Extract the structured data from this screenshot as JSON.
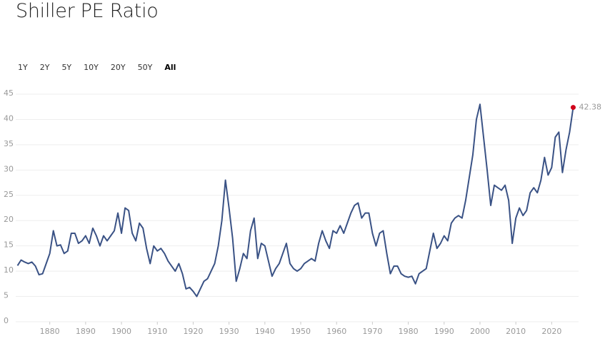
{
  "chart_data": {
    "type": "line",
    "title": "Shiller PE Ratio",
    "range_buttons": [
      "1Y",
      "2Y",
      "5Y",
      "10Y",
      "20Y",
      "50Y",
      "All"
    ],
    "active_range": 6,
    "xlim": [
      1870.5,
      2027.5
    ],
    "xticks": [
      1880,
      1890,
      1900,
      1910,
      1920,
      1930,
      1940,
      1950,
      1960,
      1970,
      1980,
      1990,
      2000,
      2010,
      2020
    ],
    "ylim": [
      0,
      45
    ],
    "yticks": [
      0,
      5,
      10,
      15,
      20,
      25,
      30,
      35,
      40,
      45
    ],
    "grid": true,
    "x": [
      1871,
      1872,
      1873,
      1874,
      1875,
      1876,
      1877,
      1878,
      1879,
      1880,
      1881,
      1882,
      1883,
      1884,
      1885,
      1886,
      1887,
      1888,
      1889,
      1890,
      1891,
      1892,
      1893,
      1894,
      1895,
      1896,
      1897,
      1898,
      1899,
      1900,
      1901,
      1902,
      1903,
      1904,
      1905,
      1906,
      1907,
      1908,
      1909,
      1910,
      1911,
      1912,
      1913,
      1914,
      1915,
      1916,
      1917,
      1918,
      1919,
      1920,
      1921,
      1922,
      1923,
      1924,
      1925,
      1926,
      1927,
      1928,
      1929,
      1930,
      1931,
      1932,
      1933,
      1934,
      1935,
      1936,
      1937,
      1938,
      1939,
      1940,
      1941,
      1942,
      1943,
      1944,
      1945,
      1946,
      1947,
      1948,
      1949,
      1950,
      1951,
      1952,
      1953,
      1954,
      1955,
      1956,
      1957,
      1958,
      1959,
      1960,
      1961,
      1962,
      1963,
      1964,
      1965,
      1966,
      1967,
      1968,
      1969,
      1970,
      1971,
      1972,
      1973,
      1974,
      1975,
      1976,
      1977,
      1978,
      1979,
      1980,
      1981,
      1982,
      1983,
      1984,
      1985,
      1986,
      1987,
      1988,
      1989,
      1990,
      1991,
      1992,
      1993,
      1994,
      1995,
      1996,
      1997,
      1998,
      1999,
      2000,
      2001,
      2002,
      2003,
      2004,
      2005,
      2006,
      2007,
      2008,
      2009,
      2010,
      2011,
      2012,
      2013,
      2014,
      2015,
      2016,
      2017,
      2018,
      2019,
      2020,
      2021,
      2022,
      2023,
      2024,
      2025,
      2026
    ],
    "series": [
      {
        "color": "#3a5285",
        "marker_color": "#d0021b",
        "values": [
          11.1,
          12.2,
          11.8,
          11.5,
          11.8,
          11.0,
          9.3,
          9.5,
          11.5,
          13.5,
          18.0,
          15.0,
          15.2,
          13.5,
          14.0,
          17.5,
          17.5,
          15.5,
          16.0,
          17.0,
          15.5,
          18.5,
          17.0,
          15.0,
          17.0,
          16.0,
          17.0,
          18.0,
          21.5,
          17.5,
          22.5,
          22.0,
          17.5,
          16.0,
          19.5,
          18.5,
          14.5,
          11.5,
          15.0,
          14.0,
          14.5,
          13.5,
          12.0,
          11.0,
          10.0,
          11.5,
          9.5,
          6.5,
          6.8,
          6.0,
          5.0,
          6.5,
          8.0,
          8.5,
          10.0,
          11.5,
          15.0,
          20.0,
          28.0,
          22.5,
          16.5,
          8.0,
          10.5,
          13.5,
          12.5,
          18.0,
          20.5,
          12.5,
          15.5,
          15.0,
          12.0,
          9.0,
          10.5,
          11.5,
          13.5,
          15.5,
          11.5,
          10.5,
          10.0,
          10.5,
          11.5,
          12.0,
          12.5,
          12.0,
          15.5,
          18.0,
          16.0,
          14.5,
          18.0,
          17.5,
          19.0,
          17.5,
          19.5,
          21.5,
          23.0,
          23.5,
          20.5,
          21.5,
          21.5,
          17.5,
          15.0,
          17.5,
          18.0,
          13.5,
          9.5,
          11.0,
          11.0,
          9.5,
          9.0,
          8.8,
          9.0,
          7.5,
          9.5,
          10.0,
          10.5,
          14.0,
          17.5,
          14.5,
          15.5,
          17.0,
          16.0,
          19.5,
          20.5,
          21.0,
          20.5,
          24.0,
          28.5,
          33.0,
          40.0,
          43.0,
          36.5,
          30.0,
          23.0,
          27.0,
          26.5,
          26.0,
          27.0,
          24.0,
          15.5,
          20.5,
          22.5,
          21.0,
          22.0,
          25.5,
          26.5,
          25.5,
          28.0,
          32.5,
          29.0,
          30.5,
          36.5,
          37.5,
          29.5,
          34.0,
          37.5,
          42.38
        ]
      }
    ]
  }
}
